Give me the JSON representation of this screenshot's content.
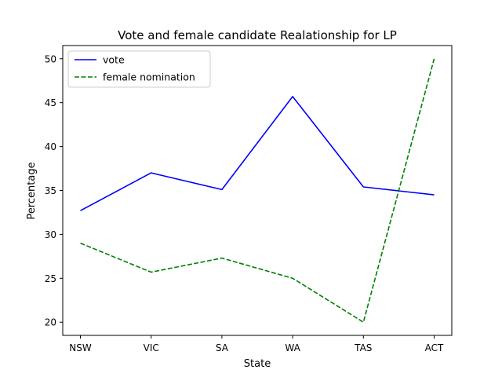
{
  "chart_data": {
    "type": "line",
    "title": "Vote and female candidate Realationship for LP",
    "xlabel": "State",
    "ylabel": "Percentage",
    "categories": [
      "NSW",
      "VIC",
      "SA",
      "WA",
      "TAS",
      "ACT"
    ],
    "ylim": [
      18.5,
      51.5
    ],
    "yticks": [
      20,
      25,
      30,
      35,
      40,
      45,
      50
    ],
    "grid": false,
    "legend_position": "top-left",
    "series": [
      {
        "name": "vote",
        "values": [
          32.7,
          37.0,
          35.1,
          45.7,
          35.4,
          34.5
        ],
        "color": "#0000ff",
        "style": "solid"
      },
      {
        "name": "female nomination",
        "values": [
          29.0,
          25.7,
          27.3,
          25.0,
          20.0,
          50.0
        ],
        "color": "#008000",
        "style": "dashed"
      }
    ]
  }
}
